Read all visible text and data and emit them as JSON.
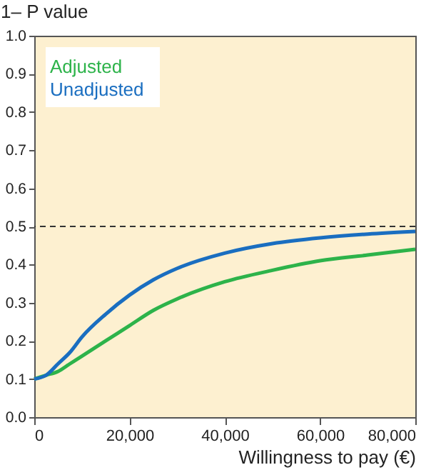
{
  "chart_data": {
    "type": "line",
    "xlabel": "Willingness to pay (€)",
    "ylabel": "1– P value",
    "x": [
      0,
      2500,
      5000,
      7500,
      10000,
      15000,
      20000,
      25000,
      30000,
      40000,
      50000,
      60000,
      70000,
      80000
    ],
    "series": [
      {
        "name": "Adjusted",
        "color": "#2db34a",
        "values": [
          0.1,
          0.11,
          0.12,
          0.14,
          0.16,
          0.2,
          0.24,
          0.28,
          0.31,
          0.355,
          0.385,
          0.41,
          0.425,
          0.44
        ]
      },
      {
        "name": "Unadjusted",
        "color": "#1a6ec0",
        "values": [
          0.1,
          0.11,
          0.14,
          0.17,
          0.21,
          0.27,
          0.32,
          0.36,
          0.39,
          0.43,
          0.455,
          0.47,
          0.48,
          0.487
        ]
      }
    ],
    "xlim": [
      0,
      80000
    ],
    "xticks": [
      {
        "value": 0,
        "label": "0"
      },
      {
        "value": 20000,
        "label": "20,000"
      },
      {
        "value": 40000,
        "label": "40,000"
      },
      {
        "value": 60000,
        "label": "60,000"
      },
      {
        "value": 80000,
        "label": "80,000"
      }
    ],
    "ylim": [
      0,
      1
    ],
    "yticks": [
      {
        "value": 0,
        "label": "0.0"
      },
      {
        "value": 0.1,
        "label": "0.1"
      },
      {
        "value": 0.2,
        "label": "0.2"
      },
      {
        "value": 0.3,
        "label": "0.3"
      },
      {
        "value": 0.4,
        "label": "0.4"
      },
      {
        "value": 0.5,
        "label": "0.5"
      },
      {
        "value": 0.6,
        "label": "0.6"
      },
      {
        "value": 0.7,
        "label": "0.7"
      },
      {
        "value": 0.8,
        "label": "0.8"
      },
      {
        "value": 0.9,
        "label": "0.9"
      },
      {
        "value": 1,
        "label": "1.0"
      }
    ],
    "ref_lines": [
      {
        "axis": "y",
        "value": 0.5,
        "color": "#333333",
        "line_style": "dashed"
      }
    ],
    "grid": false,
    "legend": "top left",
    "marker": "none",
    "line_style": "solid"
  }
}
